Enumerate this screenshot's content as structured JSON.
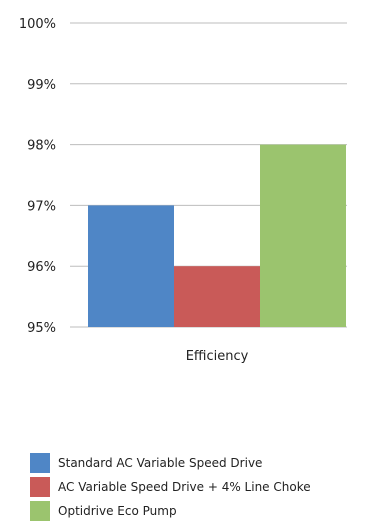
{
  "chart_data": {
    "type": "bar",
    "categories": [
      "Efficiency"
    ],
    "series": [
      {
        "name": "Standard AC Variable Speed Drive",
        "values": [
          97
        ],
        "color": "#4f86c6"
      },
      {
        "name": "AC Variable Speed Drive + 4% Line Choke",
        "values": [
          96
        ],
        "color": "#c95a58"
      },
      {
        "name": "Optidrive Eco Pump",
        "values": [
          98
        ],
        "color": "#9bc46e"
      }
    ],
    "ylim": [
      95,
      100
    ],
    "yticks": [
      95,
      96,
      97,
      98,
      99,
      100
    ],
    "ytick_labels": [
      "95%",
      "96%",
      "97%",
      "98%",
      "99%",
      "100%"
    ],
    "grid": true,
    "legend_position": "bottom-left"
  }
}
